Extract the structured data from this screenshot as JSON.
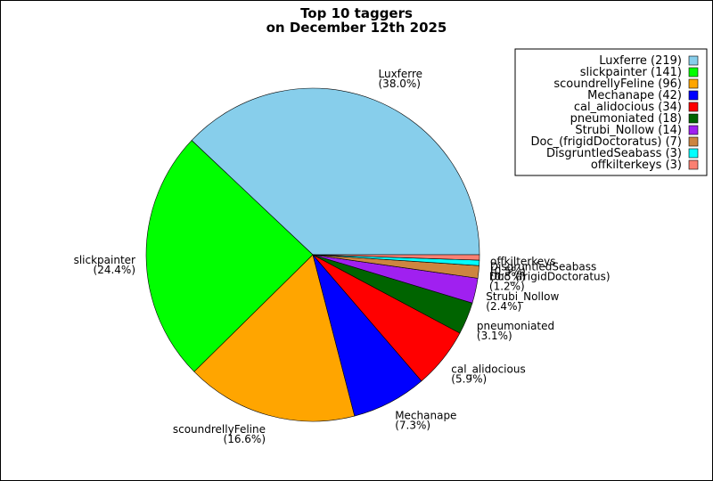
{
  "chart_data": {
    "type": "pie",
    "title": [
      "Top 10 taggers",
      "on December 12th 2025"
    ],
    "slices": [
      {
        "name": "Luxferre",
        "value": 219,
        "percent": "38.0%",
        "legend": "Luxferre (219)",
        "color": "#87ceeb"
      },
      {
        "name": "slickpainter",
        "value": 141,
        "percent": "24.4%",
        "legend": "slickpainter (141)",
        "color": "#00ff00"
      },
      {
        "name": "scoundrellyFeline",
        "value": 96,
        "percent": "16.6%",
        "legend": "scoundrellyFeline (96)",
        "color": "#ffa500"
      },
      {
        "name": "Mechanape",
        "value": 42,
        "percent": "7.3%",
        "legend": "Mechanape (42)",
        "color": "#0000ff"
      },
      {
        "name": "cal_alidocious",
        "value": 34,
        "percent": "5.9%",
        "legend": "cal_alidocious (34)",
        "color": "#ff0000"
      },
      {
        "name": "pneumoniated",
        "value": 18,
        "percent": "3.1%",
        "legend": "pneumoniated (18)",
        "color": "#006400"
      },
      {
        "name": "Strubi_Nollow",
        "value": 14,
        "percent": "2.4%",
        "legend": "Strubi_Nollow (14)",
        "color": "#a020f0"
      },
      {
        "name": "Doc_(frigidDoctoratus)",
        "value": 7,
        "percent": "1.2%",
        "legend": "Doc_(frigidDoctoratus) (7)",
        "color": "#cd853f"
      },
      {
        "name": "DisgruntledSeabass",
        "value": 3,
        "percent": "0.5%",
        "legend": "DisgruntledSeabass (3)",
        "color": "#00ffff"
      },
      {
        "name": "offkilterkeys",
        "value": 3,
        "percent": "0.5%",
        "legend": "offkilterkeys (3)",
        "color": "#fa8072"
      }
    ],
    "legend_position": "top-right",
    "start_angle": "counterclockwise from 3 o'clock"
  }
}
